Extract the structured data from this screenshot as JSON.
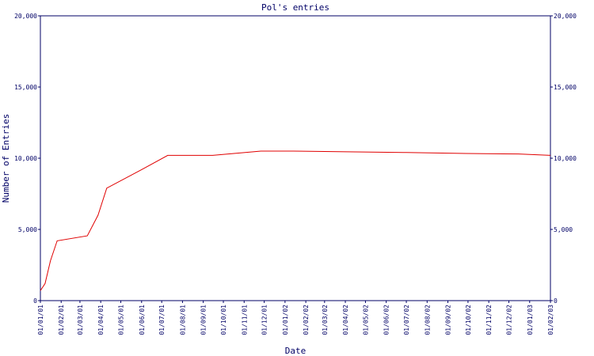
{
  "chart_data": {
    "type": "line",
    "title": "Pol's entries",
    "x_label": "Date",
    "y_label": "Number of Entries",
    "x": [
      "01/01/01",
      "08/01/01",
      "16/01/01",
      "26/01/01",
      "12/03/01",
      "28/03/01",
      "10/04/01",
      "01/06/01",
      "10/07/01",
      "15/09/01",
      "26/11/01",
      "13/01/02",
      "04/04/02",
      "01/07/02",
      "28/09/02",
      "15/12/02",
      "01/02/03"
    ],
    "series": [
      {
        "name": "Entries",
        "color": "#e00000",
        "values": [
          700,
          1200,
          2800,
          4200,
          4550,
          6000,
          7900,
          9200,
          10200,
          10200,
          10500,
          10500,
          10450,
          10400,
          10330,
          10300,
          10200
        ]
      }
    ],
    "xlim": [
      "01/01/01",
      "01/02/03"
    ],
    "xticks": [
      "01/01/01",
      "01/02/01",
      "01/03/01",
      "01/04/01",
      "01/05/01",
      "01/06/01",
      "01/07/01",
      "01/08/01",
      "01/09/01",
      "01/10/01",
      "01/11/01",
      "01/12/01",
      "01/01/02",
      "01/02/02",
      "01/03/02",
      "01/04/02",
      "01/05/02",
      "01/06/02",
      "01/07/02",
      "01/08/02",
      "01/09/02",
      "01/10/02",
      "01/11/02",
      "01/12/02",
      "01/01/03",
      "01/02/03"
    ],
    "ylim": [
      0,
      20000
    ],
    "yticks": [
      0,
      {
        "value": 5000,
        "label": "5,000"
      },
      {
        "value": 10000,
        "label": "10,000"
      },
      {
        "value": 15000,
        "label": "15,000"
      },
      {
        "value": 20000,
        "label": "20,000"
      }
    ],
    "grid": false
  }
}
